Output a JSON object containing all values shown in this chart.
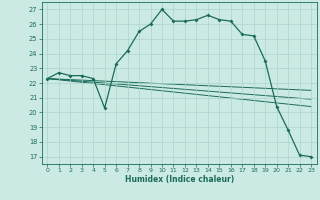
{
  "xlabel": "Humidex (Indice chaleur)",
  "ylabel": "",
  "xlim": [
    -0.5,
    23.5
  ],
  "ylim": [
    16.5,
    27.5
  ],
  "yticks": [
    17,
    18,
    19,
    20,
    21,
    22,
    23,
    24,
    25,
    26,
    27
  ],
  "xticks": [
    0,
    1,
    2,
    3,
    4,
    5,
    6,
    7,
    8,
    9,
    10,
    11,
    12,
    13,
    14,
    15,
    16,
    17,
    18,
    19,
    20,
    21,
    22,
    23
  ],
  "bg_color": "#cceae4",
  "line_color": "#1a6b5a",
  "grid_color": "#aad4cc",
  "line1_x": [
    0,
    1,
    2,
    3,
    4,
    5,
    6,
    7,
    8,
    9,
    10,
    11,
    12,
    13,
    14,
    15,
    16,
    17,
    18,
    19,
    20,
    21,
    22,
    23
  ],
  "line1_y": [
    22.3,
    22.7,
    22.5,
    22.5,
    22.3,
    20.3,
    23.3,
    24.2,
    25.5,
    26.0,
    27.0,
    26.2,
    26.2,
    26.3,
    26.6,
    26.3,
    26.2,
    25.3,
    25.2,
    23.5,
    20.4,
    18.8,
    17.1,
    17.0
  ],
  "line2_x": [
    0,
    23
  ],
  "line2_y": [
    22.3,
    20.4
  ],
  "line3_x": [
    0,
    23
  ],
  "line3_y": [
    22.3,
    20.9
  ],
  "line4_x": [
    0,
    23
  ],
  "line4_y": [
    22.3,
    21.5
  ],
  "figsize": [
    3.2,
    2.0
  ],
  "dpi": 100
}
